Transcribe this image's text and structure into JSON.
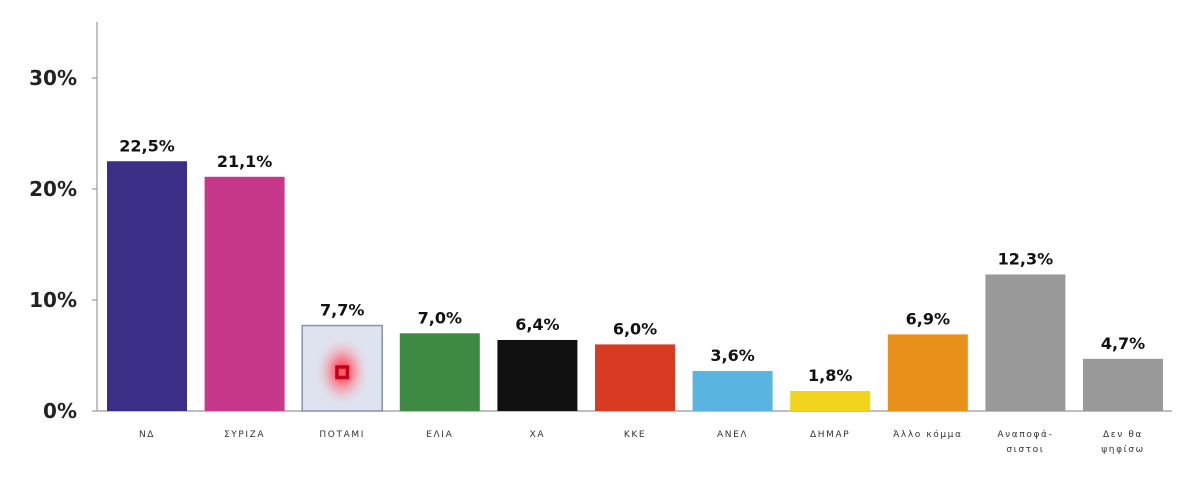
{
  "chart_data": {
    "type": "bar",
    "categories": [
      [
        "ΝΔ"
      ],
      [
        "ΣΥΡΙΖΑ"
      ],
      [
        "ΠΟΤΑΜΙ"
      ],
      [
        "ΕΛΙΑ"
      ],
      [
        "ΧΑ"
      ],
      [
        "ΚΚΕ"
      ],
      [
        "ΑΝΕΛ"
      ],
      [
        "ΔΗΜΑΡ"
      ],
      [
        "Άλλο κόμμα"
      ],
      [
        "Αναποφά-",
        "σιστοι"
      ],
      [
        "Δεν θα",
        "ψηφίσω"
      ]
    ],
    "values": [
      22.5,
      21.1,
      7.7,
      7.0,
      6.4,
      6.0,
      3.6,
      1.8,
      6.9,
      12.3,
      4.7
    ],
    "value_labels": [
      "22,5%",
      "21,1%",
      "7,7%",
      "7,0%",
      "6,4%",
      "6,0%",
      "3,6%",
      "1,8%",
      "6,9%",
      "12,3%",
      "4,7%"
    ],
    "colors": [
      "#3a2e86",
      "#c7378a",
      "#dfe3ef",
      "#3f8a43",
      "#111111",
      "#d93a22",
      "#5ab4e0",
      "#f0d31a",
      "#e8901a",
      "#999999",
      "#999999"
    ],
    "ylim": [
      0,
      35
    ],
    "yticks": [
      0,
      10,
      20,
      30
    ],
    "ytick_labels": [
      "0%",
      "10%",
      "20%",
      "30%"
    ],
    "grid": false,
    "legend": "none",
    "title": "",
    "xlabel": "",
    "ylabel": ""
  }
}
